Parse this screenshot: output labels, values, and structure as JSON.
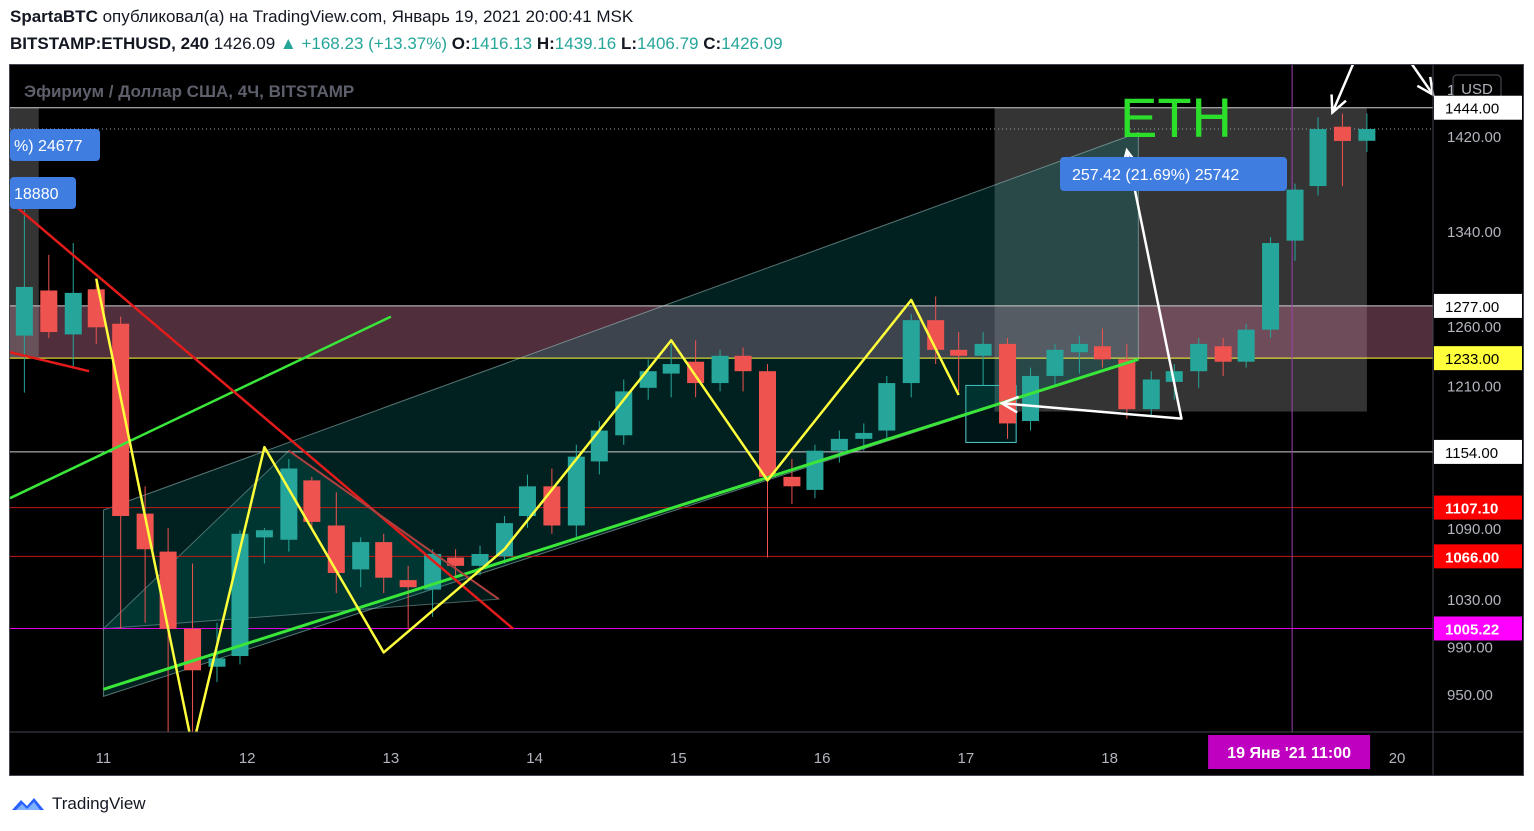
{
  "header": {
    "author": "SpartaBTC",
    "published_text": "опубликовал(а) на TradingView.com, Январь 19, 2021 20:00:41 MSK",
    "symbol": "BITSTAMP:ETHUSD, 240",
    "last": "1426.09",
    "change": "▲ +168.23 (+13.37%)",
    "o_label": "O:",
    "o_value": "1416.13",
    "h_label": "H:",
    "h_value": "1439.16",
    "l_label": "L:",
    "l_value": "1406.79",
    "c_label": "C:",
    "c_value": "1426.09"
  },
  "footer": {
    "brand": "TradingView"
  },
  "colors": {
    "up": "#26a69a",
    "down": "#ef5350",
    "yellow_line": "#ffff3b",
    "green_line": "#39e639",
    "red_line": "#e31b1b",
    "magenta": "#e100e1",
    "eth_text": "#2bdf2b",
    "label_blue": "#3f7de0"
  },
  "chart_data": {
    "type": "candlestick",
    "title": "Эфириум / Доллар США, 4Ч, BITSTAMP",
    "annotation_title": "ETH",
    "currency_button": "USD",
    "y_ticks": [
      950,
      990,
      1030,
      1090,
      1210,
      1260,
      1340,
      1420,
      1500
    ],
    "y_tick_labels": [
      "950.00",
      "990.00",
      "1030.00",
      "1090.00",
      "1210.00",
      "1260.00",
      "1340.00",
      "1420.00",
      "1500.00"
    ],
    "y_top_label_fragment": "1",
    "x_ticks": [
      11,
      12,
      13,
      14,
      15,
      16,
      17,
      18,
      20
    ],
    "x_tick_labels": [
      "11",
      "12",
      "13",
      "14",
      "15",
      "16",
      "17",
      "18",
      "20"
    ],
    "xlim": [
      10.35,
      20.25
    ],
    "ylim": [
      918,
      1480
    ],
    "current_time_label": "19 Янв '21   11:00",
    "current_time_x": 19.27,
    "price_levels": [
      {
        "value": 1444.0,
        "label": "1444.00",
        "kind": "white"
      },
      {
        "value": 1277.0,
        "label": "1277.00",
        "kind": "white"
      },
      {
        "value": 1233.0,
        "label": "1233.00",
        "kind": "yellow"
      },
      {
        "value": 1154.0,
        "label": "1154.00",
        "kind": "white"
      },
      {
        "value": 1107.1,
        "label": "1107.10",
        "kind": "red"
      },
      {
        "value": 1066.0,
        "label": "1066.00",
        "kind": "red"
      },
      {
        "value": 1005.22,
        "label": "1005.22",
        "kind": "magenta"
      }
    ],
    "measure_labels": [
      {
        "text": "%) 24677"
      },
      {
        "text": "18880"
      },
      {
        "text": "257.42 (21.69%) 25742"
      }
    ],
    "candles": [
      {
        "t": 10.45,
        "o": 1252,
        "h": 1358,
        "l": 1204,
        "c": 1293
      },
      {
        "t": 10.62,
        "o": 1290,
        "h": 1320,
        "l": 1250,
        "c": 1255
      },
      {
        "t": 10.79,
        "o": 1253,
        "h": 1330,
        "l": 1225,
        "c": 1288
      },
      {
        "t": 10.95,
        "o": 1291,
        "h": 1300,
        "l": 1245,
        "c": 1259
      },
      {
        "t": 11.12,
        "o": 1262,
        "h": 1268,
        "l": 1005,
        "c": 1100
      },
      {
        "t": 11.29,
        "o": 1102,
        "h": 1125,
        "l": 1010,
        "c": 1072
      },
      {
        "t": 11.45,
        "o": 1070,
        "h": 1090,
        "l": 910,
        "c": 1005
      },
      {
        "t": 11.62,
        "o": 1005,
        "h": 1060,
        "l": 902,
        "c": 970
      },
      {
        "t": 11.79,
        "o": 973,
        "h": 1010,
        "l": 960,
        "c": 980
      },
      {
        "t": 11.95,
        "o": 982,
        "h": 1088,
        "l": 975,
        "c": 1085
      },
      {
        "t": 12.12,
        "o": 1082,
        "h": 1090,
        "l": 1060,
        "c": 1088
      },
      {
        "t": 12.29,
        "o": 1080,
        "h": 1148,
        "l": 1070,
        "c": 1140
      },
      {
        "t": 12.45,
        "o": 1130,
        "h": 1133,
        "l": 1090,
        "c": 1095
      },
      {
        "t": 12.62,
        "o": 1092,
        "h": 1120,
        "l": 1035,
        "c": 1052
      },
      {
        "t": 12.79,
        "o": 1055,
        "h": 1082,
        "l": 1040,
        "c": 1078
      },
      {
        "t": 12.95,
        "o": 1078,
        "h": 1085,
        "l": 1035,
        "c": 1048
      },
      {
        "t": 13.12,
        "o": 1046,
        "h": 1058,
        "l": 1005,
        "c": 1040
      },
      {
        "t": 13.29,
        "o": 1038,
        "h": 1072,
        "l": 1015,
        "c": 1068
      },
      {
        "t": 13.45,
        "o": 1065,
        "h": 1072,
        "l": 1048,
        "c": 1058
      },
      {
        "t": 13.62,
        "o": 1058,
        "h": 1075,
        "l": 1050,
        "c": 1068
      },
      {
        "t": 13.79,
        "o": 1066,
        "h": 1100,
        "l": 1060,
        "c": 1094
      },
      {
        "t": 13.95,
        "o": 1100,
        "h": 1135,
        "l": 1090,
        "c": 1125
      },
      {
        "t": 14.12,
        "o": 1125,
        "h": 1140,
        "l": 1085,
        "c": 1092
      },
      {
        "t": 14.29,
        "o": 1092,
        "h": 1160,
        "l": 1080,
        "c": 1150
      },
      {
        "t": 14.45,
        "o": 1146,
        "h": 1180,
        "l": 1135,
        "c": 1172
      },
      {
        "t": 14.62,
        "o": 1168,
        "h": 1215,
        "l": 1160,
        "c": 1205
      },
      {
        "t": 14.79,
        "o": 1208,
        "h": 1232,
        "l": 1198,
        "c": 1222
      },
      {
        "t": 14.95,
        "o": 1220,
        "h": 1245,
        "l": 1200,
        "c": 1228
      },
      {
        "t": 15.12,
        "o": 1230,
        "h": 1248,
        "l": 1200,
        "c": 1212
      },
      {
        "t": 15.29,
        "o": 1212,
        "h": 1240,
        "l": 1205,
        "c": 1235
      },
      {
        "t": 15.45,
        "o": 1235,
        "h": 1242,
        "l": 1205,
        "c": 1222
      },
      {
        "t": 15.62,
        "o": 1222,
        "h": 1228,
        "l": 1065,
        "c": 1133
      },
      {
        "t": 15.79,
        "o": 1133,
        "h": 1148,
        "l": 1110,
        "c": 1125
      },
      {
        "t": 15.95,
        "o": 1122,
        "h": 1160,
        "l": 1115,
        "c": 1155
      },
      {
        "t": 16.12,
        "o": 1155,
        "h": 1172,
        "l": 1145,
        "c": 1165
      },
      {
        "t": 16.29,
        "o": 1165,
        "h": 1178,
        "l": 1155,
        "c": 1170
      },
      {
        "t": 16.45,
        "o": 1172,
        "h": 1218,
        "l": 1165,
        "c": 1212
      },
      {
        "t": 16.62,
        "o": 1212,
        "h": 1270,
        "l": 1200,
        "c": 1265
      },
      {
        "t": 16.79,
        "o": 1265,
        "h": 1285,
        "l": 1228,
        "c": 1240
      },
      {
        "t": 16.95,
        "o": 1240,
        "h": 1255,
        "l": 1205,
        "c": 1235
      },
      {
        "t": 17.12,
        "o": 1235,
        "h": 1255,
        "l": 1210,
        "c": 1245
      },
      {
        "t": 17.29,
        "o": 1245,
        "h": 1250,
        "l": 1165,
        "c": 1178
      },
      {
        "t": 17.45,
        "o": 1180,
        "h": 1225,
        "l": 1172,
        "c": 1218
      },
      {
        "t": 17.62,
        "o": 1218,
        "h": 1245,
        "l": 1210,
        "c": 1240
      },
      {
        "t": 17.79,
        "o": 1238,
        "h": 1252,
        "l": 1220,
        "c": 1245
      },
      {
        "t": 17.95,
        "o": 1243,
        "h": 1258,
        "l": 1225,
        "c": 1232
      },
      {
        "t": 18.12,
        "o": 1232,
        "h": 1245,
        "l": 1182,
        "c": 1190
      },
      {
        "t": 18.29,
        "o": 1190,
        "h": 1222,
        "l": 1185,
        "c": 1215
      },
      {
        "t": 18.45,
        "o": 1213,
        "h": 1228,
        "l": 1198,
        "c": 1222
      },
      {
        "t": 18.62,
        "o": 1222,
        "h": 1250,
        "l": 1208,
        "c": 1245
      },
      {
        "t": 18.79,
        "o": 1243,
        "h": 1250,
        "l": 1218,
        "c": 1230
      },
      {
        "t": 18.95,
        "o": 1230,
        "h": 1262,
        "l": 1225,
        "c": 1257
      },
      {
        "t": 19.12,
        "o": 1257,
        "h": 1335,
        "l": 1250,
        "c": 1330
      },
      {
        "t": 19.29,
        "o": 1332,
        "h": 1380,
        "l": 1315,
        "c": 1375
      },
      {
        "t": 19.45,
        "o": 1378,
        "h": 1436,
        "l": 1370,
        "c": 1426
      },
      {
        "t": 19.62,
        "o": 1428,
        "h": 1439,
        "l": 1378,
        "c": 1416
      },
      {
        "t": 19.79,
        "o": 1416.13,
        "h": 1439.16,
        "l": 1406.79,
        "c": 1426.09
      }
    ],
    "channel": {
      "lower": [
        [
          11.0,
          948
        ],
        [
          18.2,
          1232
        ]
      ],
      "upper": [
        [
          11.0,
          1105
        ],
        [
          18.2,
          1423
        ]
      ]
    },
    "yellow_zigzag": [
      [
        10.95,
        1300
      ],
      [
        11.62,
        905
      ],
      [
        12.12,
        1158
      ],
      [
        12.95,
        985
      ],
      [
        13.79,
        1072
      ],
      [
        14.95,
        1248
      ],
      [
        15.62,
        1130
      ],
      [
        16.62,
        1282
      ],
      [
        16.95,
        1202
      ]
    ],
    "green_support": [
      [
        11.0,
        954
      ],
      [
        18.2,
        1232
      ]
    ],
    "green_left": [
      [
        10.35,
        1115
      ],
      [
        13.0,
        1268
      ]
    ],
    "red_trend": [
      [
        10.35,
        1365
      ],
      [
        13.85,
        1005
      ]
    ],
    "red_short": [
      [
        10.35,
        1238
      ],
      [
        10.9,
        1222
      ]
    ],
    "red_triangle_top": [
      [
        12.29,
        1155
      ],
      [
        13.75,
        1030
      ]
    ],
    "white_arrows": [
      [
        [
          17.25,
          1195
        ],
        [
          18.5,
          1182
        ],
        [
          18.12,
          1408
        ]
      ],
      [
        [
          19.55,
          1440
        ],
        [
          19.85,
          1525
        ],
        [
          20.25,
          1455
        ]
      ]
    ],
    "rects": [
      {
        "x0": 17.2,
        "x1": 19.79,
        "y0": 1188,
        "y1": 1444,
        "kind": "gray"
      },
      {
        "x0": 10.35,
        "x1": 20.25,
        "y0": 1233,
        "y1": 1277,
        "kind": "pink"
      },
      {
        "x0": 10.35,
        "x1": 10.55,
        "y0": 1233,
        "y1": 1444,
        "kind": "gray"
      },
      {
        "x0": 17.0,
        "x1": 17.35,
        "y0": 1162,
        "y1": 1210,
        "kind": "cyan"
      }
    ]
  }
}
